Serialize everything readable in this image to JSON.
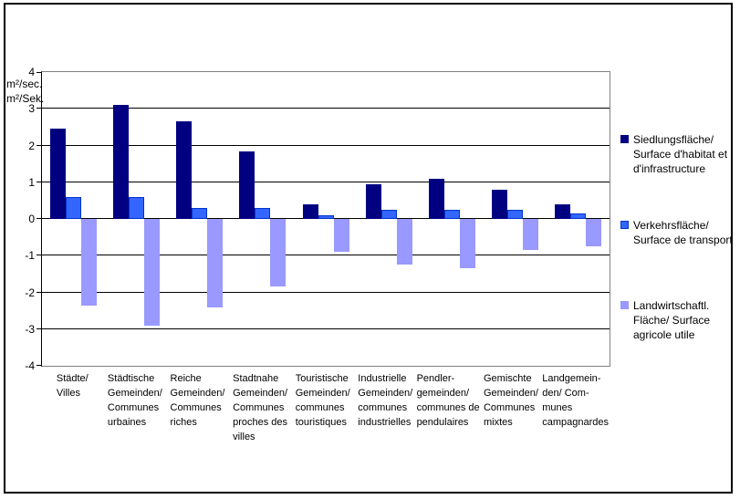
{
  "chart_data": {
    "type": "bar",
    "title": "",
    "ylabel_lines": [
      "m²/sec.",
      "m²/Sek."
    ],
    "ylim": [
      -4,
      4
    ],
    "ytick_step": 1,
    "grid": true,
    "legend_position": "right",
    "categories": [
      [
        "Städte/",
        "Villes"
      ],
      [
        "Städtische",
        "Gemeinden/",
        "Communes",
        "urbaines"
      ],
      [
        "Reiche",
        "Gemeinden/",
        "Communes",
        "riches"
      ],
      [
        "Stadtnahe",
        "Gemeinden/",
        "Communes",
        "proches des",
        "villes"
      ],
      [
        "Touristische",
        "Gemeinden/",
        "communes",
        "touristiques"
      ],
      [
        "Industrielle",
        "Gemeinden/",
        "communes",
        "industrielles"
      ],
      [
        "Pendler-",
        "gemeinden/",
        "communes de",
        "pendulaires"
      ],
      [
        "Gemischte",
        "Gemeinden/",
        "Communes",
        "mixtes"
      ],
      [
        "Landgemein-",
        "den/ Com-",
        "munes",
        "campagnardes"
      ]
    ],
    "series": [
      {
        "name": "Siedlungsfläche/ Surface d'habitat et d'infrastructure",
        "legend_lines": [
          "Siedlungsfläche/",
          "Surface d'habitat et",
          "d'infrastructure"
        ],
        "color": "#000080",
        "values": [
          2.45,
          3.1,
          2.65,
          1.85,
          0.4,
          0.95,
          1.1,
          0.8,
          0.4
        ]
      },
      {
        "name": "Verkehrsfläche/ Surface de transport",
        "legend_lines": [
          "Verkehrsfläche/",
          "Surface de transport"
        ],
        "color": "#3366FF",
        "border_color": "#0033CC",
        "values": [
          0.6,
          0.6,
          0.3,
          0.3,
          0.1,
          0.25,
          0.25,
          0.25,
          0.15
        ]
      },
      {
        "name": "Landwirtschaftl. Fläche/ Surface agricole utile",
        "legend_lines": [
          "Landwirtschaftl.",
          "Fläche/ Surface",
          "agricole utile"
        ],
        "color": "#9999FF",
        "values": [
          -2.35,
          -2.9,
          -2.4,
          -1.85,
          -0.9,
          -1.25,
          -1.35,
          -0.85,
          -0.75
        ]
      }
    ]
  },
  "colors": {
    "gridline": "#000000",
    "plot_border": "#808080",
    "outer_border": "#000000",
    "background": "#ffffff"
  }
}
